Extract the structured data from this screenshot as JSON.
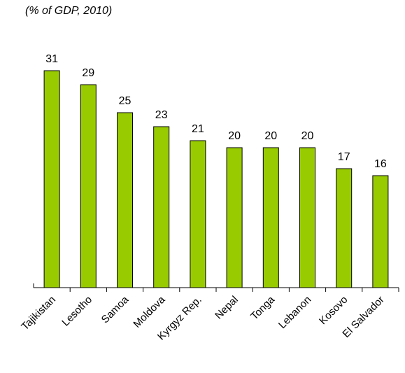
{
  "chart_data": {
    "type": "bar",
    "subtitle": "(% of GDP, 2010)",
    "categories": [
      "Tajikistan",
      "Lesotho",
      "Samoa",
      "Moldova",
      "Kyrgyz Rep.",
      "Nepal",
      "Tonga",
      "Lebanon",
      "Kosovo",
      "El Salvador"
    ],
    "values": [
      31,
      29,
      25,
      23,
      21,
      20,
      20,
      20,
      17,
      16
    ],
    "color": "#99cc00"
  }
}
